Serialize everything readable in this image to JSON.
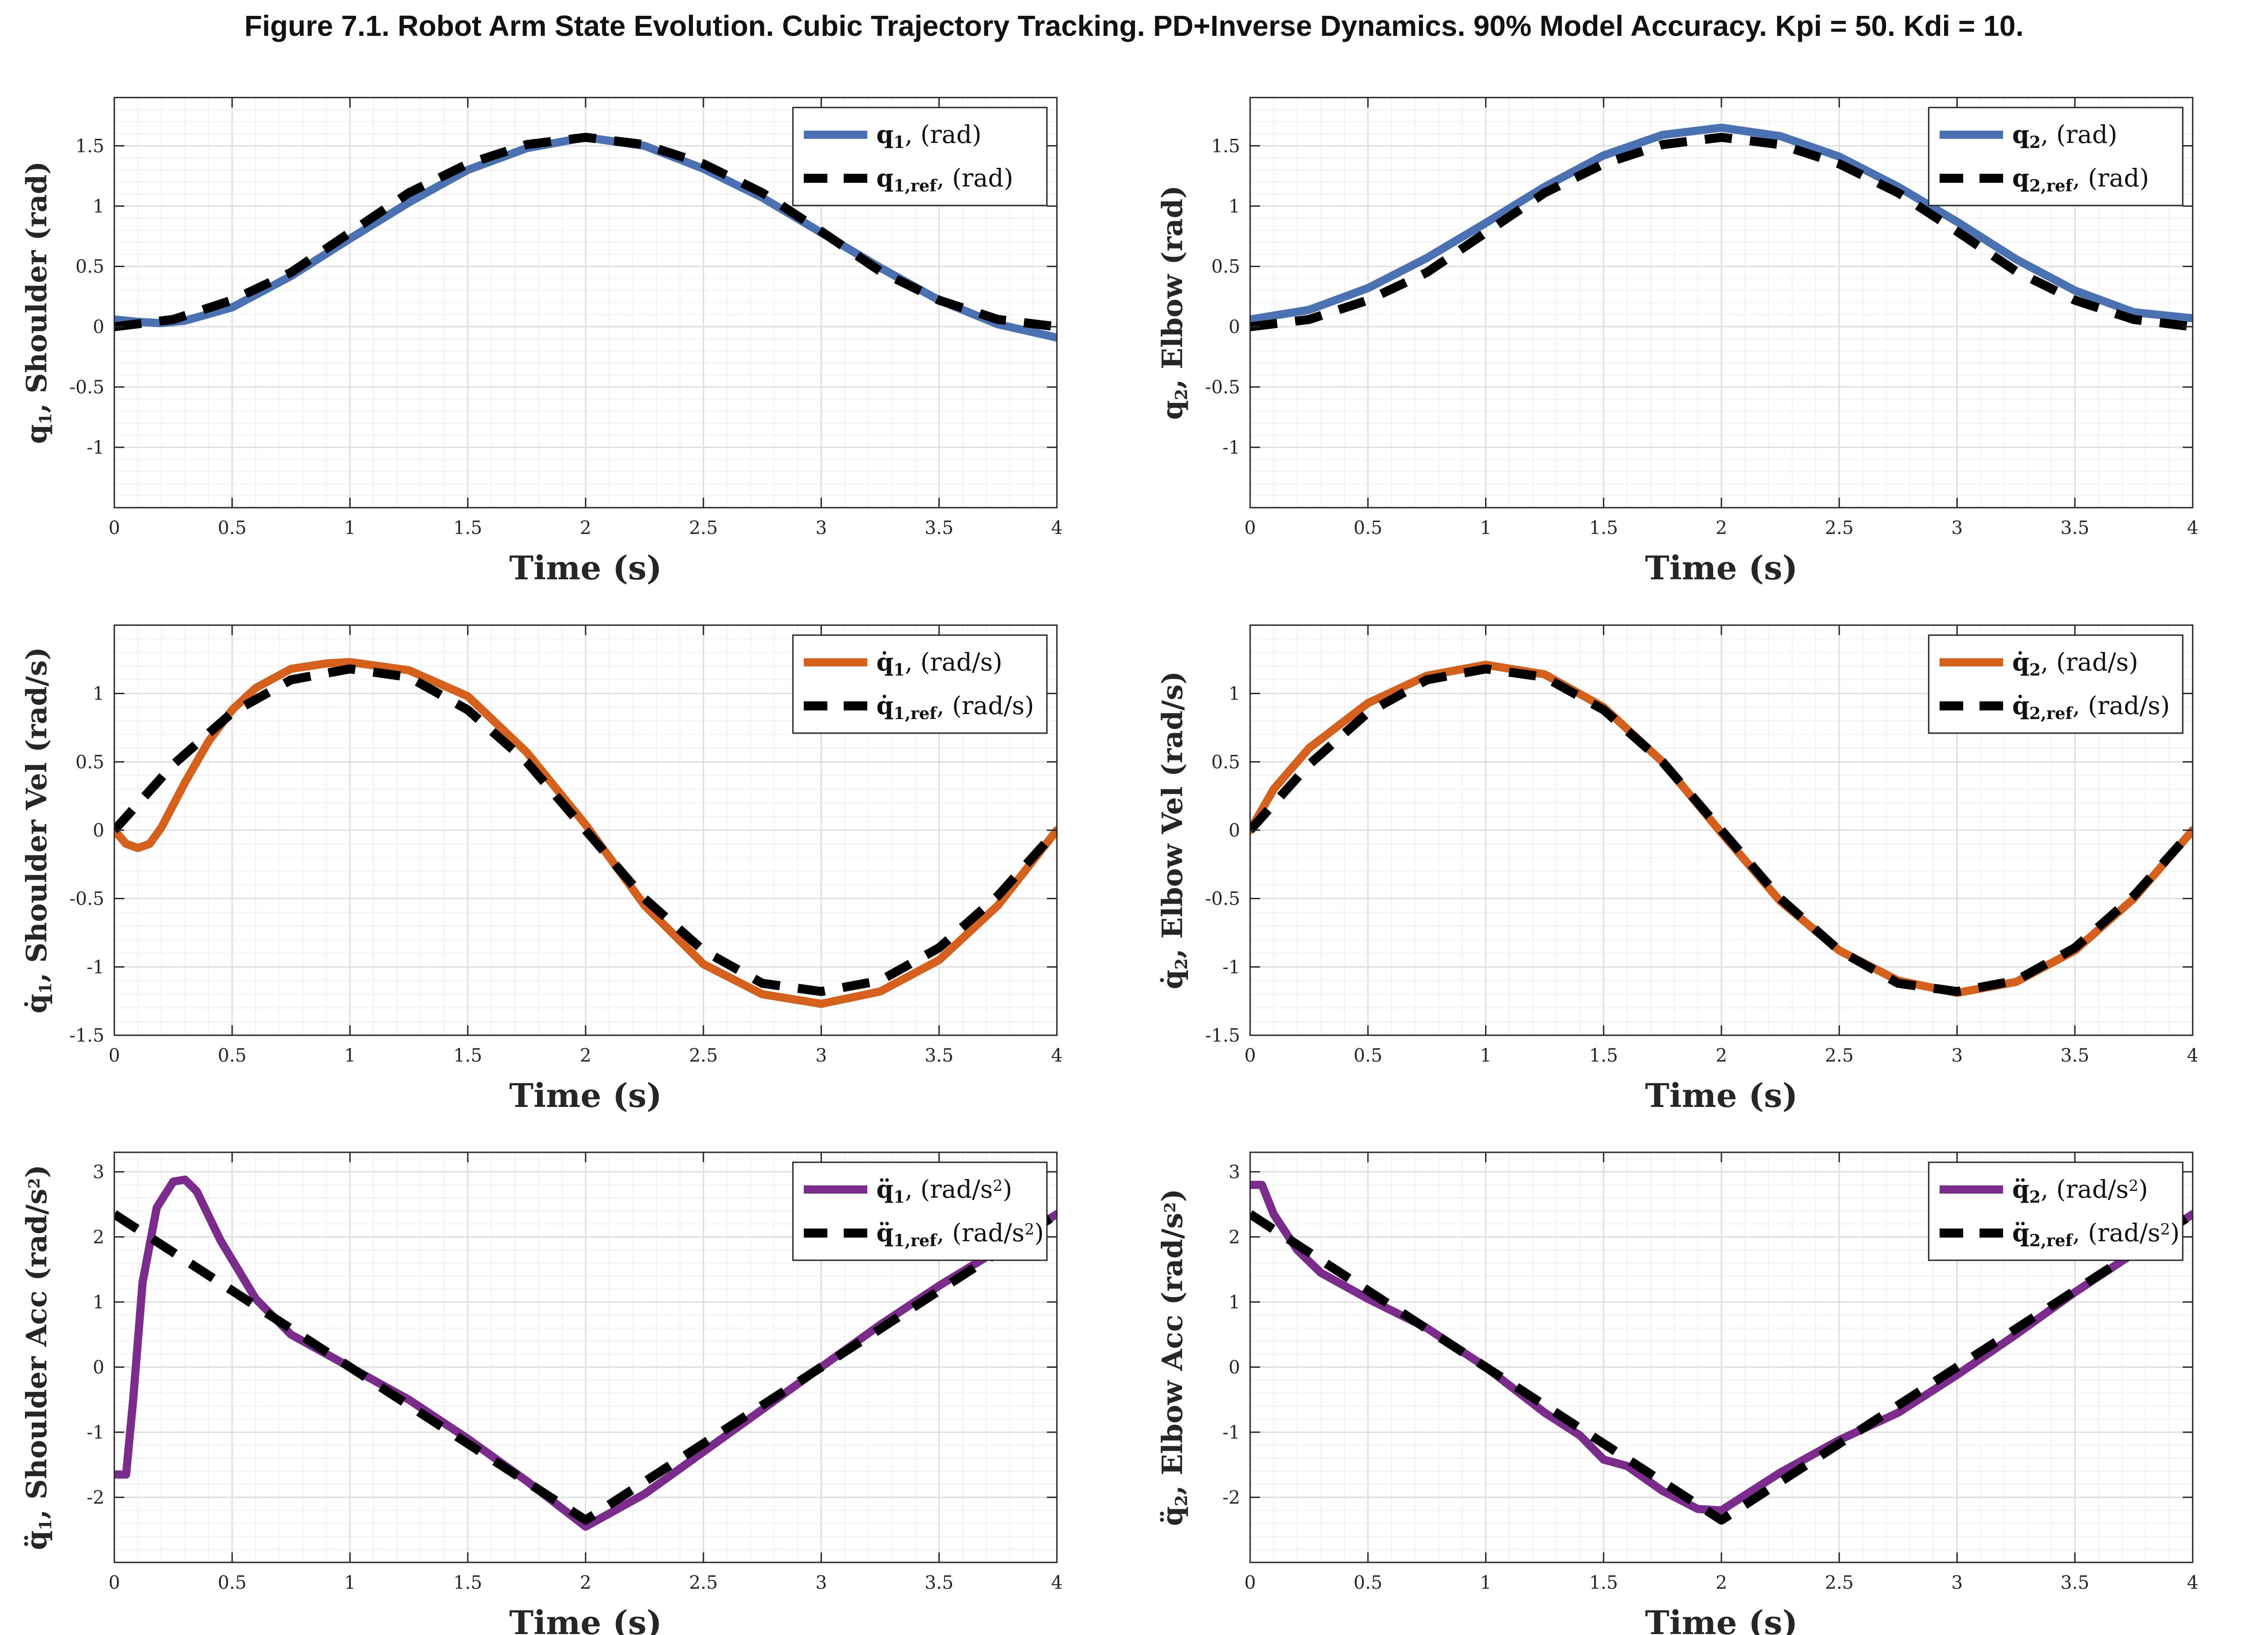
{
  "figure": {
    "title": "Figure 7.1. Robot Arm State Evolution. Cubic Trajectory Tracking. PD+Inverse Dynamics. 90% Model Accuracy. Kpi = 50. Kdi = 10."
  },
  "colors": {
    "position": "#4a71b2",
    "velocity": "#d4601c",
    "acceleration": "#7b2b8c",
    "reference": "#000000"
  },
  "chart_data": [
    {
      "type": "line",
      "xlabel": "Time (s)",
      "ylabel": {
        "main": "q",
        "sub": "1",
        "sup": "",
        "dots": 0,
        "rest": ", Shoulder (rad)"
      },
      "xlim": [
        0,
        4
      ],
      "ylim": [
        -1.5,
        1.9
      ],
      "xticks": [
        0,
        0.5,
        1,
        1.5,
        2,
        2.5,
        3,
        3.5,
        4
      ],
      "xtick_labels": [
        "0",
        "0.5",
        "1",
        "1.5",
        "2",
        "2.5",
        "3",
        "3.5",
        "4"
      ],
      "yticks": [
        -1,
        -0.5,
        0,
        0.5,
        1,
        1.5
      ],
      "ytick_labels": [
        "-1",
        "-0.5",
        "0",
        "0.5",
        "1",
        "1.5"
      ],
      "grid": true,
      "legend": "top-right",
      "series": [
        {
          "name": {
            "main": "q",
            "sub": "1",
            "sup": "",
            "dots": 0,
            "unit": ", (rad)"
          },
          "style": "solid",
          "color": "#4a71b2",
          "x": [
            0,
            0.1,
            0.2,
            0.3,
            0.5,
            0.75,
            1,
            1.25,
            1.5,
            1.75,
            2,
            2.25,
            2.5,
            2.75,
            3,
            3.25,
            3.5,
            3.75,
            4
          ],
          "y": [
            0.06,
            0.04,
            0.03,
            0.05,
            0.16,
            0.42,
            0.73,
            1.03,
            1.3,
            1.48,
            1.57,
            1.5,
            1.31,
            1.07,
            0.78,
            0.49,
            0.22,
            0.02,
            -0.09
          ]
        },
        {
          "name": {
            "main": "q",
            "sub": "1,ref",
            "sup": "",
            "dots": 0,
            "unit": ", (rad)"
          },
          "style": "dashed",
          "color": "#000000",
          "x": [
            0,
            0.25,
            0.5,
            0.75,
            1,
            1.25,
            1.5,
            1.75,
            2,
            2.25,
            2.5,
            2.75,
            3,
            3.25,
            3.5,
            3.75,
            4
          ],
          "y": [
            0,
            0.06,
            0.22,
            0.45,
            0.78,
            1.11,
            1.35,
            1.51,
            1.57,
            1.51,
            1.35,
            1.11,
            0.79,
            0.46,
            0.22,
            0.06,
            0
          ]
        }
      ]
    },
    {
      "type": "line",
      "xlabel": "Time (s)",
      "ylabel": {
        "main": "q",
        "sub": "2",
        "sup": "",
        "dots": 0,
        "rest": ", Elbow (rad)"
      },
      "xlim": [
        0,
        4
      ],
      "ylim": [
        -1.5,
        1.9
      ],
      "xticks": [
        0,
        0.5,
        1,
        1.5,
        2,
        2.5,
        3,
        3.5,
        4
      ],
      "xtick_labels": [
        "0",
        "0.5",
        "1",
        "1.5",
        "2",
        "2.5",
        "3",
        "3.5",
        "4"
      ],
      "yticks": [
        -1,
        -0.5,
        0,
        0.5,
        1,
        1.5
      ],
      "ytick_labels": [
        "-1",
        "-0.5",
        "0",
        "0.5",
        "1",
        "1.5"
      ],
      "grid": true,
      "legend": "top-right",
      "series": [
        {
          "name": {
            "main": "q",
            "sub": "2",
            "sup": "",
            "dots": 0,
            "unit": ", (rad)"
          },
          "style": "solid",
          "color": "#4a71b2",
          "x": [
            0,
            0.25,
            0.5,
            0.75,
            1,
            1.25,
            1.5,
            1.75,
            2,
            2.25,
            2.5,
            2.75,
            3,
            3.25,
            3.5,
            3.75,
            4
          ],
          "y": [
            0.06,
            0.14,
            0.32,
            0.57,
            0.86,
            1.16,
            1.42,
            1.59,
            1.65,
            1.58,
            1.41,
            1.16,
            0.87,
            0.56,
            0.3,
            0.12,
            0.07
          ]
        },
        {
          "name": {
            "main": "q",
            "sub": "2,ref",
            "sup": "",
            "dots": 0,
            "unit": ", (rad)"
          },
          "style": "dashed",
          "color": "#000000",
          "x": [
            0,
            0.25,
            0.5,
            0.75,
            1,
            1.25,
            1.5,
            1.75,
            2,
            2.25,
            2.5,
            2.75,
            3,
            3.25,
            3.5,
            3.75,
            4
          ],
          "y": [
            0,
            0.06,
            0.22,
            0.45,
            0.78,
            1.11,
            1.35,
            1.51,
            1.57,
            1.51,
            1.35,
            1.11,
            0.79,
            0.46,
            0.22,
            0.06,
            0
          ]
        }
      ]
    },
    {
      "type": "line",
      "xlabel": "Time (s)",
      "ylabel": {
        "main": "q",
        "sub": "1",
        "sup": "",
        "dots": 1,
        "rest": ", Shoulder Vel (rad/s)"
      },
      "xlim": [
        0,
        4
      ],
      "ylim": [
        -1.5,
        1.5
      ],
      "xticks": [
        0,
        0.5,
        1,
        1.5,
        2,
        2.5,
        3,
        3.5,
        4
      ],
      "xtick_labels": [
        "0",
        "0.5",
        "1",
        "1.5",
        "2",
        "2.5",
        "3",
        "3.5",
        "4"
      ],
      "yticks": [
        -1.5,
        -1,
        -0.5,
        0,
        0.5,
        1
      ],
      "ytick_labels": [
        "-1.5",
        "-1",
        "-0.5",
        "0",
        "0.5",
        "1"
      ],
      "grid": true,
      "legend": "top-right",
      "series": [
        {
          "name": {
            "main": "q",
            "sub": "1",
            "sup": "",
            "dots": 1,
            "unit": ", (rad/s)"
          },
          "style": "solid",
          "color": "#d4601c",
          "x": [
            0,
            0.05,
            0.1,
            0.15,
            0.2,
            0.3,
            0.4,
            0.5,
            0.6,
            0.75,
            0.9,
            1,
            1.25,
            1.5,
            1.75,
            2,
            2.25,
            2.5,
            2.75,
            3,
            3.25,
            3.5,
            3.75,
            4
          ],
          "y": [
            0,
            -0.1,
            -0.13,
            -0.1,
            0.02,
            0.35,
            0.65,
            0.88,
            1.04,
            1.18,
            1.22,
            1.23,
            1.17,
            0.98,
            0.57,
            0.04,
            -0.55,
            -0.98,
            -1.2,
            -1.27,
            -1.18,
            -0.95,
            -0.55,
            0
          ]
        },
        {
          "name": {
            "main": "q",
            "sub": "1,ref",
            "sup": "",
            "dots": 1,
            "unit": ", (rad/s)"
          },
          "style": "dashed",
          "color": "#000000",
          "x": [
            0,
            0.25,
            0.5,
            0.75,
            1,
            1.25,
            1.5,
            1.75,
            2,
            2.25,
            2.5,
            2.75,
            3,
            3.25,
            3.5,
            3.75,
            4
          ],
          "y": [
            0,
            0.48,
            0.86,
            1.1,
            1.18,
            1.12,
            0.88,
            0.5,
            0,
            -0.5,
            -0.88,
            -1.12,
            -1.18,
            -1.1,
            -0.86,
            -0.48,
            0
          ]
        }
      ]
    },
    {
      "type": "line",
      "xlabel": "Time (s)",
      "ylabel": {
        "main": "q",
        "sub": "2",
        "sup": "",
        "dots": 1,
        "rest": ", Elbow Vel (rad/s)"
      },
      "xlim": [
        0,
        4
      ],
      "ylim": [
        -1.5,
        1.5
      ],
      "xticks": [
        0,
        0.5,
        1,
        1.5,
        2,
        2.5,
        3,
        3.5,
        4
      ],
      "xtick_labels": [
        "0",
        "0.5",
        "1",
        "1.5",
        "2",
        "2.5",
        "3",
        "3.5",
        "4"
      ],
      "yticks": [
        -1.5,
        -1,
        -0.5,
        0,
        0.5,
        1
      ],
      "ytick_labels": [
        "-1.5",
        "-1",
        "-0.5",
        "0",
        "0.5",
        "1"
      ],
      "grid": true,
      "legend": "top-right",
      "series": [
        {
          "name": {
            "main": "q",
            "sub": "2",
            "sup": "",
            "dots": 1,
            "unit": ", (rad/s)"
          },
          "style": "solid",
          "color": "#d4601c",
          "x": [
            0,
            0.1,
            0.25,
            0.5,
            0.75,
            1,
            1.25,
            1.5,
            1.75,
            2,
            2.25,
            2.5,
            2.75,
            3,
            3.25,
            3.5,
            3.75,
            4
          ],
          "y": [
            0,
            0.3,
            0.6,
            0.93,
            1.13,
            1.21,
            1.14,
            0.9,
            0.5,
            -0.02,
            -0.52,
            -0.88,
            -1.1,
            -1.19,
            -1.11,
            -0.88,
            -0.5,
            0
          ]
        },
        {
          "name": {
            "main": "q",
            "sub": "2,ref",
            "sup": "",
            "dots": 1,
            "unit": ", (rad/s)"
          },
          "style": "dashed",
          "color": "#000000",
          "x": [
            0,
            0.25,
            0.5,
            0.75,
            1,
            1.25,
            1.5,
            1.75,
            2,
            2.25,
            2.5,
            2.75,
            3,
            3.25,
            3.5,
            3.75,
            4
          ],
          "y": [
            0,
            0.48,
            0.86,
            1.1,
            1.18,
            1.12,
            0.88,
            0.5,
            0,
            -0.5,
            -0.88,
            -1.12,
            -1.18,
            -1.1,
            -0.86,
            -0.48,
            0
          ]
        }
      ]
    },
    {
      "type": "line",
      "xlabel": "Time (s)",
      "ylabel": {
        "main": "q",
        "sub": "1",
        "sup": "",
        "dots": 2,
        "rest": ", Shoulder Acc (rad/s",
        "rest_sup": "2",
        "rest_end": ")"
      },
      "xlim": [
        0,
        4
      ],
      "ylim": [
        -3,
        3.3
      ],
      "xticks": [
        0,
        0.5,
        1,
        1.5,
        2,
        2.5,
        3,
        3.5,
        4
      ],
      "xtick_labels": [
        "0",
        "0.5",
        "1",
        "1.5",
        "2",
        "2.5",
        "3",
        "3.5",
        "4"
      ],
      "yticks": [
        -2,
        -1,
        0,
        1,
        2,
        3
      ],
      "ytick_labels": [
        "-2",
        "-1",
        "0",
        "1",
        "2",
        "3"
      ],
      "grid": true,
      "legend": "top-right",
      "series": [
        {
          "name": {
            "main": "q",
            "sub": "1",
            "sup": "",
            "dots": 2,
            "unit": ", (rad/s",
            "unit_sup": "2",
            "unit_end": ")"
          },
          "style": "solid",
          "color": "#7b2b8c",
          "x": [
            0,
            0.05,
            0.08,
            0.12,
            0.18,
            0.25,
            0.3,
            0.35,
            0.45,
            0.6,
            0.75,
            1,
            1.25,
            1.5,
            1.75,
            2,
            2.25,
            2.5,
            2.75,
            3,
            3.25,
            3.5,
            3.75,
            4
          ],
          "y": [
            -1.65,
            -1.65,
            -0.5,
            1.3,
            2.45,
            2.85,
            2.88,
            2.7,
            1.95,
            1.05,
            0.5,
            0.0,
            -0.5,
            -1.1,
            -1.75,
            -2.45,
            -1.95,
            -1.3,
            -0.65,
            0.0,
            0.65,
            1.25,
            1.8,
            2.35
          ]
        },
        {
          "name": {
            "main": "q",
            "sub": "1,ref",
            "sup": "",
            "dots": 2,
            "unit": ", (rad/s",
            "unit_sup": "2",
            "unit_end": ")"
          },
          "style": "dashed",
          "color": "#000000",
          "x": [
            0,
            2,
            4
          ],
          "y": [
            2.35,
            -2.35,
            2.35
          ]
        }
      ]
    },
    {
      "type": "line",
      "xlabel": "Time (s)",
      "ylabel": {
        "main": "q",
        "sub": "2",
        "sup": "",
        "dots": 2,
        "rest": ", Elbow Acc (rad/s",
        "rest_sup": "2",
        "rest_end": ")"
      },
      "xlim": [
        0,
        4
      ],
      "ylim": [
        -3,
        3.3
      ],
      "xticks": [
        0,
        0.5,
        1,
        1.5,
        2,
        2.5,
        3,
        3.5,
        4
      ],
      "xtick_labels": [
        "0",
        "0.5",
        "1",
        "1.5",
        "2",
        "2.5",
        "3",
        "3.5",
        "4"
      ],
      "yticks": [
        -2,
        -1,
        0,
        1,
        2,
        3
      ],
      "ytick_labels": [
        "-2",
        "-1",
        "0",
        "1",
        "2",
        "3"
      ],
      "grid": true,
      "legend": "top-right",
      "series": [
        {
          "name": {
            "main": "q",
            "sub": "2",
            "sup": "",
            "dots": 2,
            "unit": ", (rad/s",
            "unit_sup": "2",
            "unit_end": ")"
          },
          "style": "solid",
          "color": "#7b2b8c",
          "x": [
            0,
            0.05,
            0.1,
            0.2,
            0.3,
            0.5,
            0.75,
            1,
            1.25,
            1.4,
            1.5,
            1.6,
            1.75,
            1.9,
            2,
            2.25,
            2.5,
            2.75,
            3,
            3.25,
            3.5,
            3.75,
            4
          ],
          "y": [
            2.8,
            2.8,
            2.35,
            1.8,
            1.45,
            1.05,
            0.6,
            0.0,
            -0.7,
            -1.05,
            -1.42,
            -1.52,
            -1.9,
            -2.18,
            -2.2,
            -1.62,
            -1.12,
            -0.7,
            -0.12,
            0.5,
            1.15,
            1.75,
            2.35
          ]
        },
        {
          "name": {
            "main": "q",
            "sub": "2,ref",
            "sup": "",
            "dots": 2,
            "unit": ", (rad/s",
            "unit_sup": "2",
            "unit_end": ")"
          },
          "style": "dashed",
          "color": "#000000",
          "x": [
            0,
            2,
            4
          ],
          "y": [
            2.35,
            -2.35,
            2.35
          ]
        }
      ]
    }
  ]
}
